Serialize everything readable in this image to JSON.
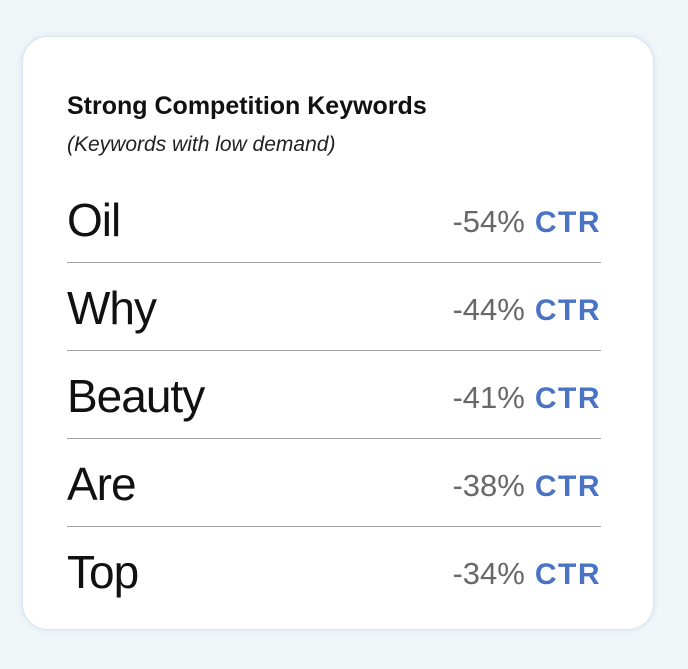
{
  "card": {
    "title": "Strong Competition Keywords",
    "subtitle": "(Keywords with low demand)",
    "accent_color": "#4a73c6",
    "rows": [
      {
        "keyword": "Oil",
        "value": "-54%",
        "unit": "CTR"
      },
      {
        "keyword": "Why",
        "value": "-44%",
        "unit": "CTR"
      },
      {
        "keyword": "Beauty",
        "value": "-41%",
        "unit": "CTR"
      },
      {
        "keyword": "Are",
        "value": "-38%",
        "unit": "CTR"
      },
      {
        "keyword": "Top",
        "value": "-34%",
        "unit": "CTR"
      }
    ]
  }
}
